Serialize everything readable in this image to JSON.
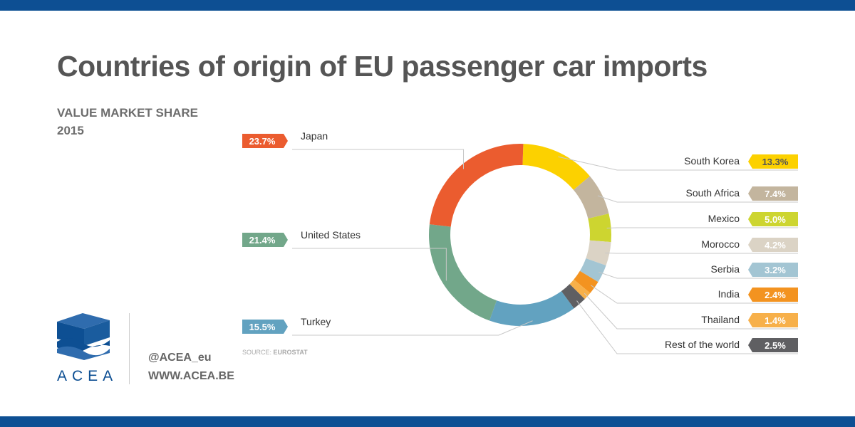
{
  "header": {
    "title": "Countries of origin of EU passenger car imports",
    "subtitle_line1": "VALUE MARKET SHARE",
    "subtitle_line2": "2015"
  },
  "source_label": "SOURCE: ",
  "source_value": "EUROSTAT",
  "logo": {
    "text": "ACEA"
  },
  "contact": {
    "twitter": "@ACEA_eu",
    "website": "WWW.ACEA.BE"
  },
  "colors": {
    "brand_blue": "#0d4f93",
    "title_gray": "#555555",
    "leader_line": "#c8c8c8"
  },
  "chart_data": {
    "type": "donut",
    "title": "Countries of origin of EU passenger car imports",
    "subtitle": "VALUE MARKET SHARE 2015",
    "unit": "%",
    "slices": [
      {
        "label": "South Korea",
        "value": 13.3,
        "display": "13.3%",
        "color": "#fcd100",
        "side": "right",
        "text_color": "#555555"
      },
      {
        "label": "South Africa",
        "value": 7.4,
        "display": "7.4%",
        "color": "#c3b59e",
        "side": "right",
        "text_color": "#ffffff"
      },
      {
        "label": "Mexico",
        "value": 5.0,
        "display": "5.0%",
        "color": "#cdd530",
        "side": "right",
        "text_color": "#ffffff"
      },
      {
        "label": "Morocco",
        "value": 4.2,
        "display": "4.2%",
        "color": "#dbd3c5",
        "side": "right",
        "text_color": "#ffffff"
      },
      {
        "label": "Serbia",
        "value": 3.2,
        "display": "3.2%",
        "color": "#a3c5d3",
        "side": "right",
        "text_color": "#ffffff"
      },
      {
        "label": "India",
        "value": 2.4,
        "display": "2.4%",
        "color": "#f39320",
        "side": "right",
        "text_color": "#ffffff"
      },
      {
        "label": "Thailand",
        "value": 1.4,
        "display": "1.4%",
        "color": "#f7b04a",
        "side": "right",
        "text_color": "#ffffff"
      },
      {
        "label": "Rest of the world",
        "value": 2.5,
        "display": "2.5%",
        "color": "#5f5f62",
        "side": "right",
        "text_color": "#ffffff"
      },
      {
        "label": "Turkey",
        "value": 15.5,
        "display": "15.5%",
        "color": "#62a2c0",
        "side": "left",
        "text_color": "#ffffff"
      },
      {
        "label": "United States",
        "value": 21.4,
        "display": "21.4%",
        "color": "#72a78a",
        "side": "left",
        "text_color": "#ffffff"
      },
      {
        "label": "Japan",
        "value": 23.7,
        "display": "23.7%",
        "color": "#eb5c2f",
        "side": "left",
        "text_color": "#ffffff"
      }
    ]
  }
}
